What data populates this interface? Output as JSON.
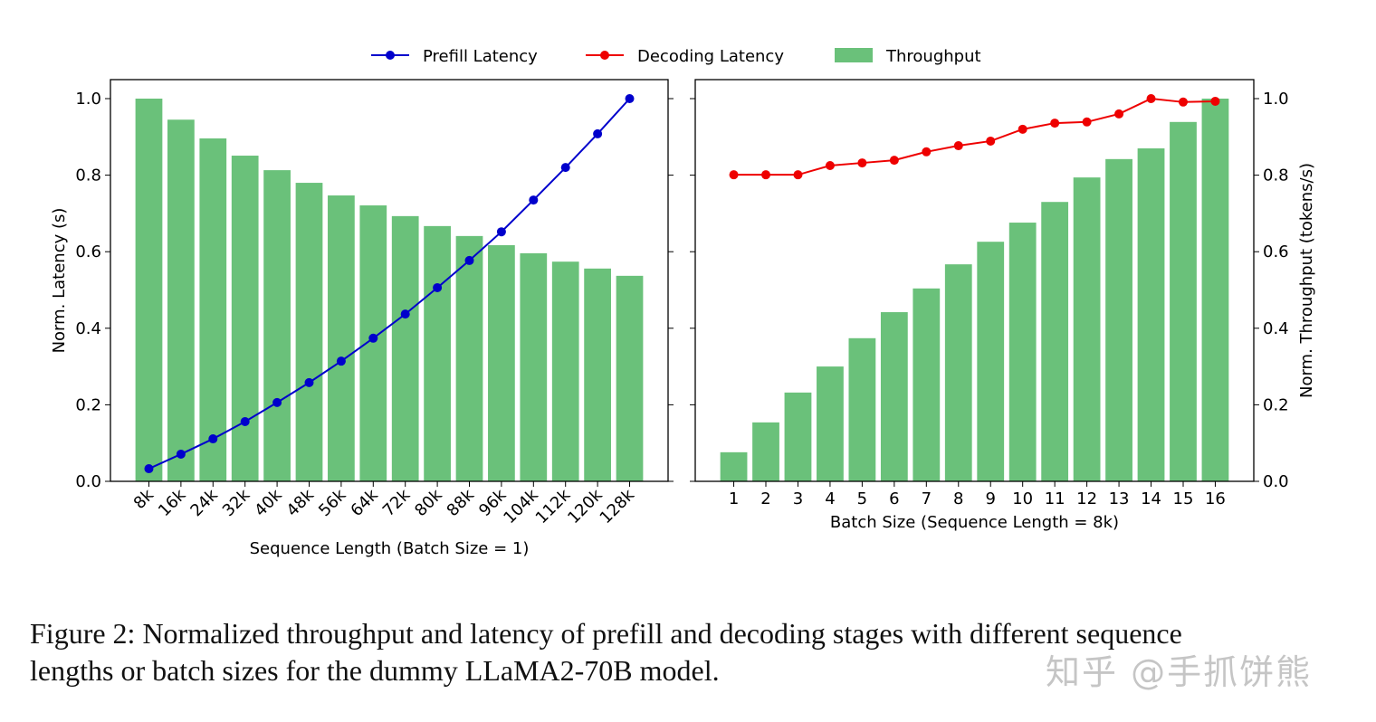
{
  "legend": {
    "position": "top-center",
    "items": [
      {
        "label": "Prefill Latency",
        "color": "#0000cc",
        "marker": "line-dot"
      },
      {
        "label": "Decoding Latency",
        "color": "#ee0000",
        "marker": "line-dot"
      },
      {
        "label": "Throughput",
        "color": "#6ac17a",
        "marker": "patch"
      }
    ]
  },
  "chart_data": [
    {
      "type": "bar+line",
      "xlabel": "Sequence Length (Batch Size = 1)",
      "ylabel": "Norm. Latency (s)",
      "ylim": [
        0,
        1.05
      ],
      "yticks": [
        "0.0",
        "0.2",
        "0.4",
        "0.6",
        "0.8",
        "1.0"
      ],
      "categories": [
        "8k",
        "16k",
        "24k",
        "32k",
        "40k",
        "48k",
        "56k",
        "64k",
        "72k",
        "80k",
        "88k",
        "96k",
        "104k",
        "112k",
        "120k",
        "128k"
      ],
      "series": [
        {
          "name": "Throughput",
          "type": "bar",
          "color": "#6ac17a",
          "values": [
            1.0,
            0.945,
            0.896,
            0.851,
            0.813,
            0.78,
            0.747,
            0.721,
            0.693,
            0.667,
            0.641,
            0.617,
            0.596,
            0.574,
            0.556,
            0.537
          ]
        },
        {
          "name": "Prefill Latency",
          "type": "line",
          "color": "#0000cc",
          "values": [
            0.033,
            0.071,
            0.111,
            0.156,
            0.206,
            0.258,
            0.314,
            0.374,
            0.437,
            0.506,
            0.577,
            0.652,
            0.735,
            0.82,
            0.908,
            1.0
          ]
        }
      ],
      "tick_rotation": 45
    },
    {
      "type": "bar+line",
      "xlabel": "Batch Size (Sequence Length = 8k)",
      "ylabel": "Norm. Throughput (tokens/s)",
      "ylabel_side": "right",
      "ylim": [
        0,
        1.05
      ],
      "yticks": [
        "0.0",
        "0.2",
        "0.4",
        "0.6",
        "0.8",
        "1.0"
      ],
      "categories": [
        "1",
        "2",
        "3",
        "4",
        "5",
        "6",
        "7",
        "8",
        "9",
        "10",
        "11",
        "12",
        "13",
        "14",
        "15",
        "16"
      ],
      "series": [
        {
          "name": "Throughput",
          "type": "bar",
          "color": "#6ac17a",
          "values": [
            0.076,
            0.154,
            0.232,
            0.3,
            0.374,
            0.442,
            0.504,
            0.567,
            0.626,
            0.676,
            0.73,
            0.794,
            0.842,
            0.87,
            0.939,
            1.0
          ]
        },
        {
          "name": "Decoding Latency",
          "type": "line",
          "color": "#ee0000",
          "values": [
            0.801,
            0.801,
            0.801,
            0.825,
            0.832,
            0.839,
            0.861,
            0.877,
            0.889,
            0.92,
            0.936,
            0.939,
            0.96,
            1.0,
            0.991,
            0.993
          ]
        }
      ]
    }
  ],
  "caption": {
    "line1": "Figure 2: Normalized throughput and latency of prefill and decoding stages with different sequence",
    "line2": "lengths or batch sizes for the dummy LLaMA2-70B model."
  },
  "watermark": "知乎 @手抓饼熊"
}
